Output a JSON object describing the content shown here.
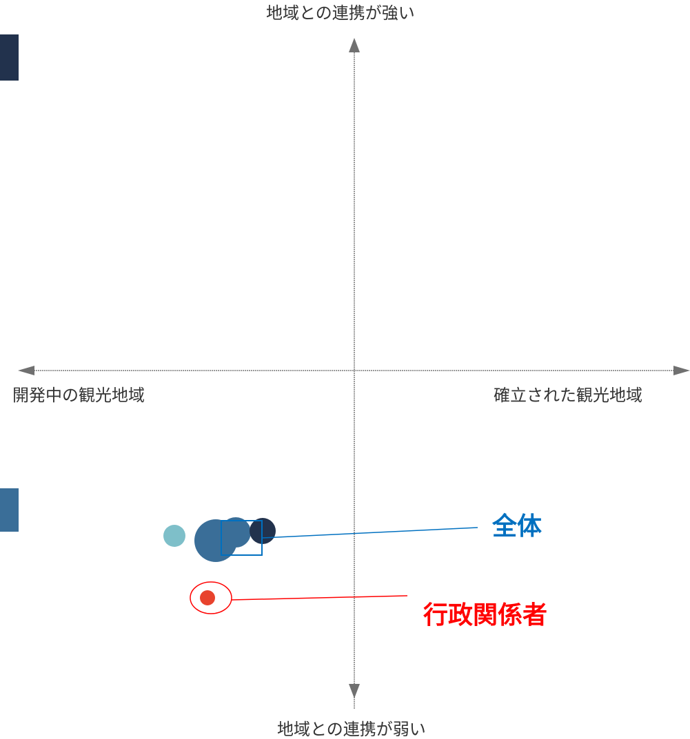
{
  "axes": {
    "top_label": "地域との連携が強い",
    "bottom_label": "地域との連携が弱い",
    "left_label": "開発中の観光地域",
    "right_label": "確立された観光地域"
  },
  "callouts": {
    "overall": {
      "label": "全体",
      "color": "#0070c0"
    },
    "admin": {
      "label": "行政関係者",
      "color": "#ff0000"
    }
  },
  "colors": {
    "axis_line": "#9a9a9a",
    "arrow": "#707070",
    "bubble_light": "#7ebfc9",
    "bubble_mid": "#3a6e98",
    "bubble_dark": "#22324d",
    "bubble_admin": "#e8432d",
    "edge_block_top": "#22324d",
    "edge_block_bottom": "#3a6e98"
  }
}
